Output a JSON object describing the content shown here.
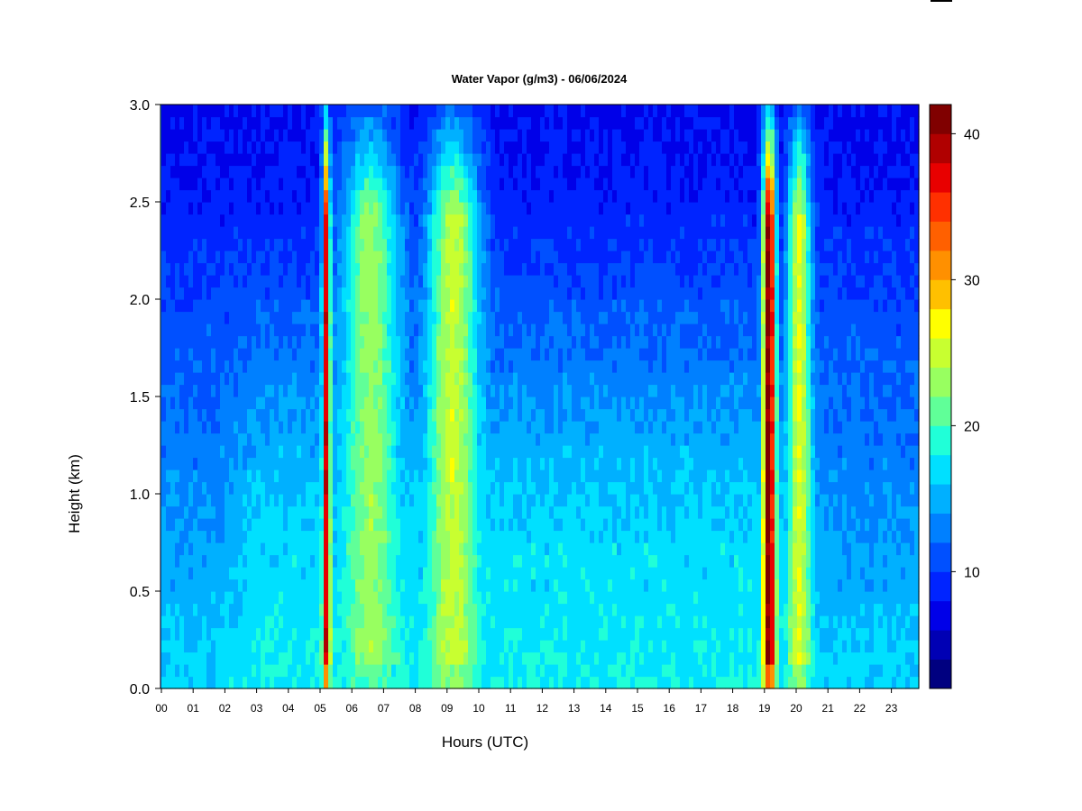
{
  "chart_data": {
    "type": "heatmap",
    "title": "Water Vapor (g/m3) - 06/06/2024",
    "xlabel": "Hours (UTC)",
    "ylabel": "Height (km)",
    "x_ticks": [
      "00",
      "01",
      "02",
      "03",
      "04",
      "05",
      "06",
      "07",
      "08",
      "09",
      "10",
      "11",
      "12",
      "13",
      "14",
      "15",
      "16",
      "17",
      "18",
      "19",
      "20",
      "21",
      "22",
      "23"
    ],
    "x_range": [
      0,
      24
    ],
    "y_ticks": [
      "0.0",
      "0.5",
      "1.0",
      "1.5",
      "2.0",
      "2.5",
      "3.0"
    ],
    "y_range": [
      0,
      3.0
    ],
    "colorbar": {
      "range": [
        2,
        42
      ],
      "step": 2.5,
      "tick_labels": [
        "10",
        "20",
        "30",
        "40"
      ],
      "tick_values": [
        10,
        20,
        30,
        40
      ],
      "colors": [
        "#000080",
        "#0000b4",
        "#0000e8",
        "#0024ff",
        "#0050ff",
        "#0080ff",
        "#00b0ff",
        "#00e0ff",
        "#20ffd8",
        "#60ff98",
        "#98ff60",
        "#c8ff30",
        "#ffff00",
        "#ffc000",
        "#ff9000",
        "#ff6000",
        "#ff3000",
        "#e80000",
        "#b00000",
        "#800000"
      ]
    },
    "profile": {
      "description_levels": "Water vapor concentration decreases with height; moist plumes near 05 UTC and 19 UTC.",
      "height_layers_km": [
        0.0,
        0.25,
        0.5,
        0.75,
        1.0,
        1.5,
        2.0,
        2.5,
        3.0
      ],
      "background_by_height": [
        17,
        16,
        15,
        14.5,
        13.5,
        12,
        10.5,
        8.5,
        7.5
      ],
      "plumes": [
        {
          "center_hour": 5.2,
          "width_hours": 0.12,
          "peak_value": 38
        },
        {
          "center_hour": 19.15,
          "width_hours": 0.2,
          "peak_value": 42
        },
        {
          "center_hour": 20.1,
          "width_hours": 0.35,
          "peak_value": 26
        },
        {
          "center_hour": 9.2,
          "width_hours": 0.8,
          "peak_value": 25
        },
        {
          "center_hour": 6.6,
          "width_hours": 0.9,
          "peak_value": 23
        }
      ]
    }
  }
}
